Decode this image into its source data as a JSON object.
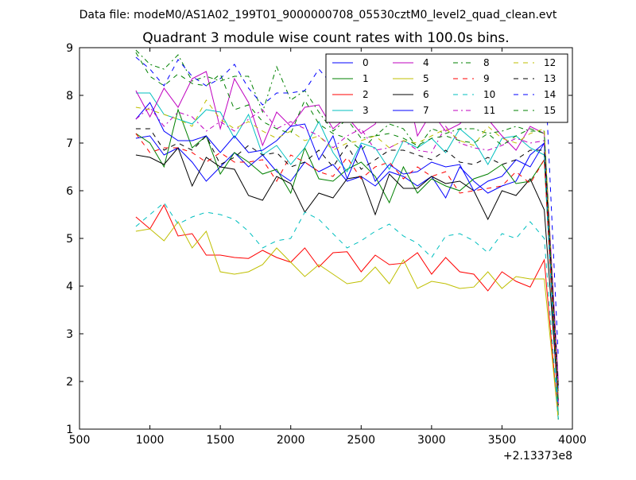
{
  "suptitle": "Data file: modeM0/AS1A02_199T01_9000000708_05530cztM0_level2_quad_clean.evt",
  "chart_data": {
    "type": "line",
    "title": "Quadrant 3 module wise count rates with 100.0s bins.",
    "xlabel": "",
    "ylabel": "",
    "x_offset_label": "+2.13373e8",
    "xlim": [
      500,
      4000
    ],
    "ylim": [
      1,
      9
    ],
    "xticks": [
      500,
      1000,
      1500,
      2000,
      2500,
      3000,
      3500,
      4000
    ],
    "yticks": [
      1,
      2,
      3,
      4,
      5,
      6,
      7,
      8,
      9
    ],
    "grid": false,
    "legend_position": "top-right",
    "x": [
      900,
      1000,
      1100,
      1200,
      1300,
      1400,
      1500,
      1600,
      1700,
      1800,
      1900,
      2000,
      2100,
      2200,
      2300,
      2400,
      2500,
      2600,
      2700,
      2800,
      2900,
      3000,
      3100,
      3200,
      3300,
      3400,
      3500,
      3600,
      3700,
      3800,
      3900
    ],
    "series": [
      {
        "name": "0",
        "color": "#0000ff",
        "dash": "solid",
        "values": [
          7.1,
          7.15,
          6.75,
          6.9,
          6.6,
          6.2,
          6.5,
          6.8,
          6.5,
          6.75,
          6.4,
          6.2,
          6.6,
          6.4,
          6.55,
          6.2,
          6.3,
          6.1,
          6.4,
          6.3,
          6.1,
          6.3,
          5.85,
          6.5,
          6.2,
          5.95,
          6.1,
          6.2,
          6.75,
          7.0,
          1.8
        ]
      },
      {
        "name": "1",
        "color": "#008000",
        "dash": "solid",
        "values": [
          7.2,
          7.0,
          6.5,
          7.7,
          6.9,
          7.15,
          6.35,
          6.8,
          6.6,
          6.35,
          6.45,
          5.95,
          6.9,
          6.25,
          6.2,
          6.45,
          6.6,
          6.3,
          5.75,
          6.5,
          5.95,
          6.25,
          6.1,
          6.0,
          6.25,
          6.35,
          6.55,
          6.15,
          6.2,
          6.65,
          1.3
        ]
      },
      {
        "name": "2",
        "color": "#ff0000",
        "dash": "solid",
        "values": [
          5.45,
          5.2,
          5.7,
          5.05,
          5.1,
          4.65,
          4.65,
          4.6,
          4.58,
          4.75,
          4.6,
          4.5,
          4.8,
          4.4,
          4.7,
          4.72,
          4.3,
          4.65,
          4.45,
          4.48,
          4.7,
          4.25,
          4.6,
          4.3,
          4.25,
          3.9,
          4.3,
          4.1,
          3.98,
          4.55,
          1.2
        ]
      },
      {
        "name": "3",
        "color": "#00bfbf",
        "dash": "solid",
        "values": [
          8.05,
          8.05,
          7.6,
          7.5,
          7.4,
          7.7,
          7.65,
          7.1,
          7.6,
          6.75,
          6.95,
          6.55,
          6.9,
          7.45,
          6.8,
          6.4,
          7.0,
          6.9,
          6.45,
          7.05,
          6.9,
          7.1,
          6.8,
          7.3,
          7.05,
          6.55,
          7.1,
          7.15,
          6.9,
          6.75,
          1.2
        ]
      },
      {
        "name": "4",
        "color": "#bf00bf",
        "dash": "solid",
        "values": [
          8.1,
          7.55,
          8.15,
          7.75,
          8.35,
          8.5,
          7.3,
          8.35,
          7.85,
          6.95,
          7.65,
          7.35,
          7.75,
          7.8,
          7.3,
          7.55,
          7.2,
          7.4,
          8.05,
          8.5,
          7.15,
          7.65,
          7.25,
          7.4,
          7.7,
          7.5,
          7.15,
          6.85,
          7.35,
          7.2,
          2.0
        ]
      },
      {
        "name": "5",
        "color": "#bfbf00",
        "dash": "solid",
        "values": [
          5.15,
          5.2,
          4.95,
          5.35,
          4.8,
          5.15,
          4.3,
          4.25,
          4.3,
          4.45,
          4.8,
          4.5,
          4.2,
          4.45,
          4.25,
          4.05,
          4.1,
          4.4,
          4.05,
          4.55,
          3.95,
          4.1,
          4.05,
          3.95,
          3.98,
          4.3,
          3.95,
          4.2,
          4.15,
          4.15,
          1.2
        ]
      },
      {
        "name": "6",
        "color": "#000000",
        "dash": "solid",
        "values": [
          6.75,
          6.7,
          6.55,
          6.9,
          6.1,
          6.7,
          6.5,
          6.45,
          5.9,
          5.8,
          6.3,
          6.15,
          5.55,
          5.95,
          5.85,
          6.25,
          6.3,
          5.5,
          6.35,
          6.05,
          6.05,
          6.3,
          6.15,
          6.2,
          6.0,
          5.4,
          6.0,
          5.9,
          6.25,
          5.6,
          1.6
        ]
      },
      {
        "name": "7",
        "color": "#0000ff",
        "dash": "solid",
        "values": [
          7.5,
          7.85,
          7.25,
          7.05,
          7.05,
          7.15,
          6.8,
          7.15,
          6.8,
          6.85,
          7.05,
          7.35,
          7.4,
          6.65,
          7.15,
          6.25,
          6.95,
          6.2,
          6.55,
          6.35,
          6.4,
          6.6,
          6.5,
          6.55,
          6.0,
          6.2,
          6.3,
          6.65,
          6.5,
          7.0,
          1.5
        ]
      },
      {
        "name": "8",
        "color": "#008000",
        "dash": "dashdot",
        "values": [
          8.95,
          8.65,
          8.55,
          8.85,
          8.3,
          8.4,
          8.3,
          8.4,
          8.4,
          7.65,
          8.6,
          7.9,
          8.1,
          7.65,
          7.25,
          7.5,
          7.1,
          7.15,
          7.4,
          7.3,
          6.9,
          7.3,
          7.2,
          7.3,
          7.3,
          7.2,
          7.25,
          7.35,
          7.25,
          7.25,
          1.6
        ]
      },
      {
        "name": "9",
        "color": "#ff0000",
        "dash": "dashed",
        "values": [
          7.2,
          6.8,
          6.9,
          6.9,
          6.8,
          6.6,
          6.8,
          6.6,
          6.6,
          6.65,
          6.2,
          6.75,
          6.6,
          6.4,
          6.3,
          6.7,
          6.25,
          6.5,
          6.6,
          6.25,
          6.5,
          6.3,
          6.4,
          5.95,
          6.0,
          6.05,
          6.1,
          6.4,
          6.15,
          6.65,
          1.4
        ]
      },
      {
        "name": "10",
        "color": "#00bfbf",
        "dash": "dashed",
        "values": [
          5.25,
          5.5,
          5.75,
          5.3,
          5.45,
          5.55,
          5.5,
          5.4,
          5.15,
          4.8,
          4.95,
          5.0,
          5.55,
          5.4,
          5.1,
          4.8,
          4.95,
          5.15,
          5.3,
          5.05,
          4.9,
          4.6,
          5.05,
          5.1,
          4.95,
          4.7,
          5.1,
          5.0,
          5.35,
          5.0,
          1.2
        ]
      },
      {
        "name": "11",
        "color": "#bf00bf",
        "dash": "dashdot",
        "values": [
          7.5,
          7.75,
          7.35,
          7.65,
          7.55,
          7.25,
          7.45,
          7.25,
          7.5,
          7.7,
          7.3,
          7.45,
          7.3,
          7.15,
          6.9,
          7.15,
          7.3,
          6.85,
          6.9,
          7.05,
          6.85,
          6.8,
          7.35,
          7.0,
          6.9,
          6.85,
          6.95,
          7.1,
          7.0,
          7.05,
          1.6
        ]
      },
      {
        "name": "12",
        "color": "#bfbf00",
        "dash": "dashed",
        "values": [
          7.75,
          7.7,
          7.6,
          7.5,
          7.35,
          7.9,
          7.5,
          7.3,
          7.45,
          7.25,
          7.1,
          7.25,
          7.05,
          7.15,
          6.85,
          7.0,
          7.05,
          7.15,
          6.9,
          7.05,
          7.0,
          7.15,
          7.3,
          7.05,
          6.95,
          7.35,
          7.1,
          7.0,
          7.2,
          7.3,
          1.7
        ]
      },
      {
        "name": "13",
        "color": "#000000",
        "dash": "dashed",
        "values": [
          7.3,
          7.3,
          6.85,
          7.0,
          6.85,
          7.15,
          6.55,
          6.7,
          6.95,
          6.75,
          6.8,
          6.5,
          6.6,
          6.85,
          6.5,
          6.95,
          6.45,
          6.65,
          6.85,
          6.85,
          6.75,
          6.65,
          6.85,
          6.6,
          6.55,
          6.7,
          6.55,
          6.65,
          6.85,
          6.85,
          1.9
        ]
      },
      {
        "name": "14",
        "color": "#0000ff",
        "dash": "dashed",
        "values": [
          8.8,
          8.55,
          8.2,
          8.75,
          8.4,
          8.2,
          8.35,
          8.65,
          8.15,
          7.8,
          8.05,
          8.05,
          8.1,
          8.55,
          8.2,
          8.3,
          7.95,
          8.4,
          8.15,
          8.0,
          7.85,
          7.9,
          8.1,
          7.95,
          8.05,
          8.25,
          8.0,
          8.05,
          8.15,
          8.85,
          2.5
        ]
      },
      {
        "name": "15",
        "color": "#008000",
        "dash": "dashed",
        "values": [
          8.9,
          8.4,
          8.2,
          8.45,
          8.25,
          8.2,
          8.45,
          7.7,
          7.8,
          7.45,
          7.3,
          7.2,
          7.9,
          7.4,
          7.2,
          7.1,
          6.85,
          7.15,
          7.2,
          7.1,
          6.95,
          7.1,
          7.15,
          7.05,
          7.0,
          7.2,
          6.95,
          7.15,
          7.3,
          7.2,
          1.5
        ]
      }
    ]
  }
}
